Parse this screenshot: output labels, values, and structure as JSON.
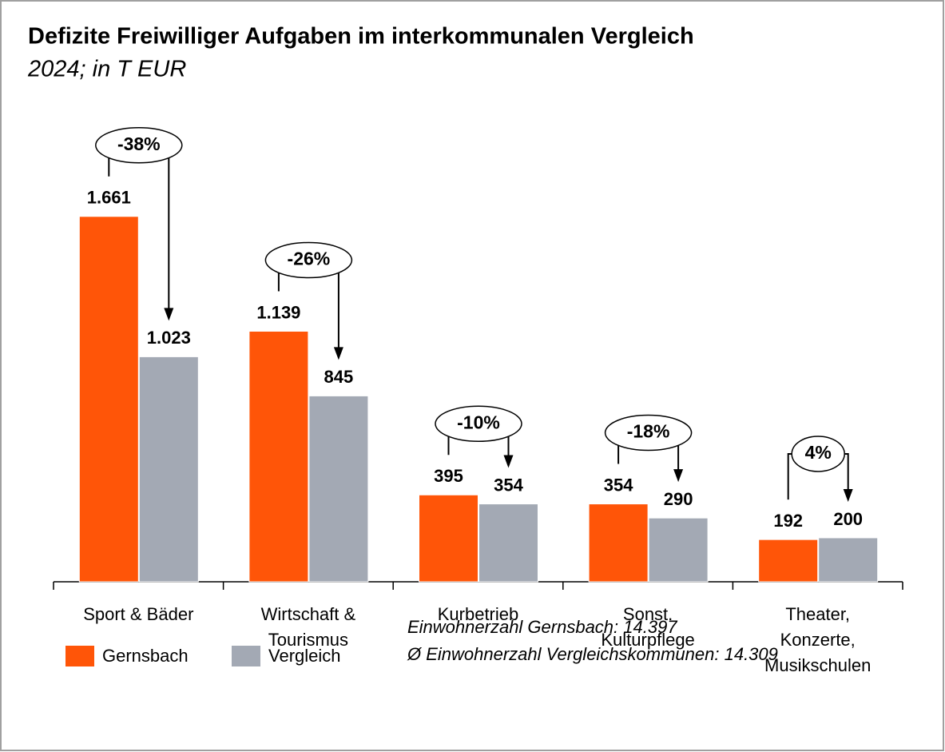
{
  "chart_data": {
    "type": "bar",
    "title": "Defizite Freiwilliger Aufgaben im interkommunalen Vergleich",
    "subtitle": "2024; in T EUR",
    "categories": [
      "Sport & Bäder",
      "Wirtschaft  &\nTourismus",
      "Kurbetrieb",
      "Sonst.\nKulturpflege",
      "Theater,\nKonzerte,\nMusikschulen"
    ],
    "series": [
      {
        "name": "Gernsbach",
        "color": "#ff5508",
        "values": [
          1661,
          1139,
          395,
          354,
          192
        ],
        "value_labels": [
          "1.661",
          "1.139",
          "395",
          "354",
          "192"
        ]
      },
      {
        "name": "Vergleich",
        "color": "#a3a9b4",
        "values": [
          1023,
          845,
          354,
          290,
          200
        ],
        "value_labels": [
          "1.023",
          "845",
          "354",
          "290",
          "200"
        ]
      }
    ],
    "changes": [
      -38,
      -26,
      -10,
      -18,
      4
    ],
    "change_labels": [
      "-38%",
      "-26%",
      "-10%",
      "-18%",
      "4%"
    ],
    "notes": [
      "Einwohnerzahl Gernsbach: 14.397",
      "Ø Einwohnerzahl Vergleichskommunen: 14.309"
    ],
    "ylim": [
      0,
      1900
    ]
  }
}
